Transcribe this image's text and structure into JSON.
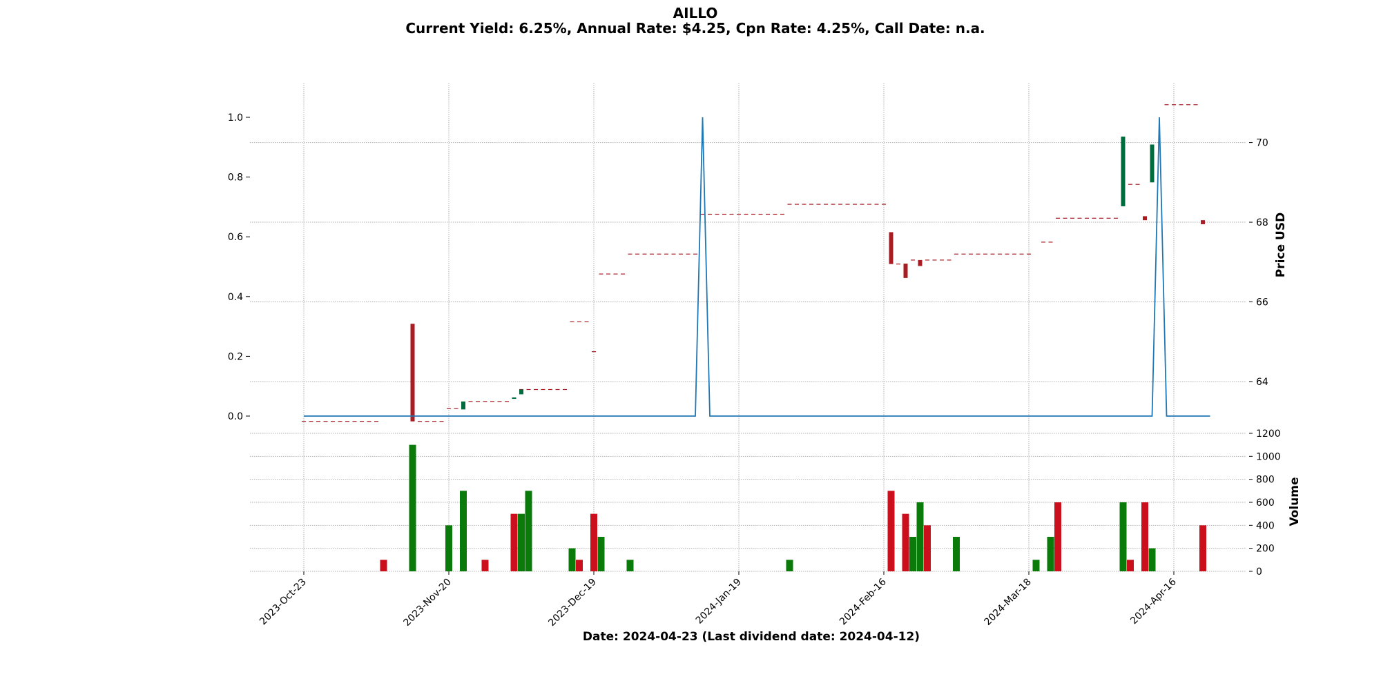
{
  "chart_data": {
    "type": "candlestick",
    "title": "AILLO",
    "subtitle": "Current Yield: 6.25%, Annual Rate: $4.25, Cpn Rate: 4.25%, Call Date: n.a.",
    "xlabel": "Date: 2024-04-23   (Last dividend date: 2024-04-12)",
    "price_axis_label": "Price USD",
    "volume_axis_label": "Volume",
    "dividend_axis": {
      "ylim": [
        0.0,
        1.0
      ],
      "ticks": [
        "0.0",
        "0.2",
        "0.4",
        "0.6",
        "0.8",
        "1.0"
      ]
    },
    "price_axis": {
      "ylim": [
        62.7,
        71.5
      ],
      "ticks": [
        "64",
        "66",
        "68",
        "70"
      ]
    },
    "volume_axis": {
      "ylim": [
        0,
        1200
      ],
      "ticks": [
        "0",
        "200",
        "400",
        "600",
        "800",
        "1000",
        "1200"
      ]
    },
    "x_axis": {
      "ticks": [
        {
          "label": "2023-Oct-23",
          "i": 0
        },
        {
          "label": "2023-Nov-20",
          "i": 20
        },
        {
          "label": "2023-Dec-19",
          "i": 40
        },
        {
          "label": "2024-Jan-19",
          "i": 60
        },
        {
          "label": "2024-Feb-16",
          "i": 80
        },
        {
          "label": "2024-Mar-18",
          "i": 100
        },
        {
          "label": "2024-Apr-16",
          "i": 120
        }
      ],
      "count": 126
    },
    "grid": true,
    "colors": {
      "up": "#006b3c",
      "down": "#a81c24",
      "flat_dash": "#a81c24",
      "volume_up": "#0a7a0a",
      "volume_down": "#cc0f1c",
      "dividend_line": "#1f77b4",
      "grid": "#b0b0b0"
    },
    "flat_segments": [
      {
        "from": 0,
        "to": 10,
        "price": 63.0
      },
      {
        "from": 16,
        "to": 19,
        "price": 63.0
      },
      {
        "from": 20,
        "to": 21,
        "price": 63.32
      },
      {
        "from": 23,
        "to": 28,
        "price": 63.5
      },
      {
        "from": 30,
        "to": 36,
        "price": 63.8
      },
      {
        "from": 37,
        "to": 39,
        "price": 65.5
      },
      {
        "from": 40,
        "to": 40,
        "price": 64.75
      },
      {
        "from": 41,
        "to": 44,
        "price": 66.7
      },
      {
        "from": 45,
        "to": 54,
        "price": 67.2
      },
      {
        "from": 55,
        "to": 66,
        "price": 68.2
      },
      {
        "from": 67,
        "to": 80,
        "price": 68.45
      },
      {
        "from": 82,
        "to": 83,
        "price": 66.95
      },
      {
        "from": 84,
        "to": 84,
        "price": 67.05
      },
      {
        "from": 86,
        "to": 89,
        "price": 67.05
      },
      {
        "from": 90,
        "to": 100,
        "price": 67.2
      },
      {
        "from": 102,
        "to": 103,
        "price": 67.5
      },
      {
        "from": 104,
        "to": 112,
        "price": 68.1
      },
      {
        "from": 114,
        "to": 115,
        "price": 68.95
      },
      {
        "from": 119,
        "to": 123,
        "price": 70.95
      }
    ],
    "candles": [
      {
        "i": 15,
        "open": 65.45,
        "close": 63.0
      },
      {
        "i": 22,
        "open": 63.3,
        "close": 63.5
      },
      {
        "i": 29,
        "open": 63.6,
        "close": 63.6
      },
      {
        "i": 30,
        "open": 63.68,
        "close": 63.8
      },
      {
        "i": 81,
        "open": 67.75,
        "close": 66.95
      },
      {
        "i": 83,
        "open": 66.95,
        "close": 66.6
      },
      {
        "i": 85,
        "open": 67.05,
        "close": 66.9
      },
      {
        "i": 113,
        "open": 68.4,
        "close": 70.15
      },
      {
        "i": 116,
        "open": 68.15,
        "close": 68.05
      },
      {
        "i": 117,
        "open": 69.0,
        "close": 69.95
      },
      {
        "i": 124,
        "open": 68.05,
        "close": 67.95
      }
    ],
    "dividends": [
      {
        "i": 55,
        "value": 1.0
      },
      {
        "i": 118,
        "value": 1.0
      }
    ],
    "volume": [
      {
        "i": 11,
        "value": 100,
        "dir": "down"
      },
      {
        "i": 15,
        "value": 1100,
        "dir": "up"
      },
      {
        "i": 20,
        "value": 400,
        "dir": "up"
      },
      {
        "i": 22,
        "value": 700,
        "dir": "up"
      },
      {
        "i": 25,
        "value": 100,
        "dir": "down"
      },
      {
        "i": 29,
        "value": 500,
        "dir": "down"
      },
      {
        "i": 30,
        "value": 500,
        "dir": "up"
      },
      {
        "i": 31,
        "value": 700,
        "dir": "up"
      },
      {
        "i": 37,
        "value": 200,
        "dir": "up"
      },
      {
        "i": 38,
        "value": 100,
        "dir": "down"
      },
      {
        "i": 40,
        "value": 500,
        "dir": "down"
      },
      {
        "i": 41,
        "value": 300,
        "dir": "up"
      },
      {
        "i": 45,
        "value": 100,
        "dir": "up"
      },
      {
        "i": 67,
        "value": 100,
        "dir": "up"
      },
      {
        "i": 81,
        "value": 700,
        "dir": "down"
      },
      {
        "i": 83,
        "value": 500,
        "dir": "down"
      },
      {
        "i": 84,
        "value": 300,
        "dir": "up"
      },
      {
        "i": 85,
        "value": 600,
        "dir": "up"
      },
      {
        "i": 86,
        "value": 400,
        "dir": "down"
      },
      {
        "i": 90,
        "value": 300,
        "dir": "up"
      },
      {
        "i": 101,
        "value": 100,
        "dir": "up"
      },
      {
        "i": 103,
        "value": 300,
        "dir": "up"
      },
      {
        "i": 104,
        "value": 600,
        "dir": "down"
      },
      {
        "i": 113,
        "value": 600,
        "dir": "up"
      },
      {
        "i": 114,
        "value": 100,
        "dir": "down"
      },
      {
        "i": 116,
        "value": 600,
        "dir": "down"
      },
      {
        "i": 117,
        "value": 200,
        "dir": "up"
      },
      {
        "i": 124,
        "value": 400,
        "dir": "down"
      }
    ]
  }
}
